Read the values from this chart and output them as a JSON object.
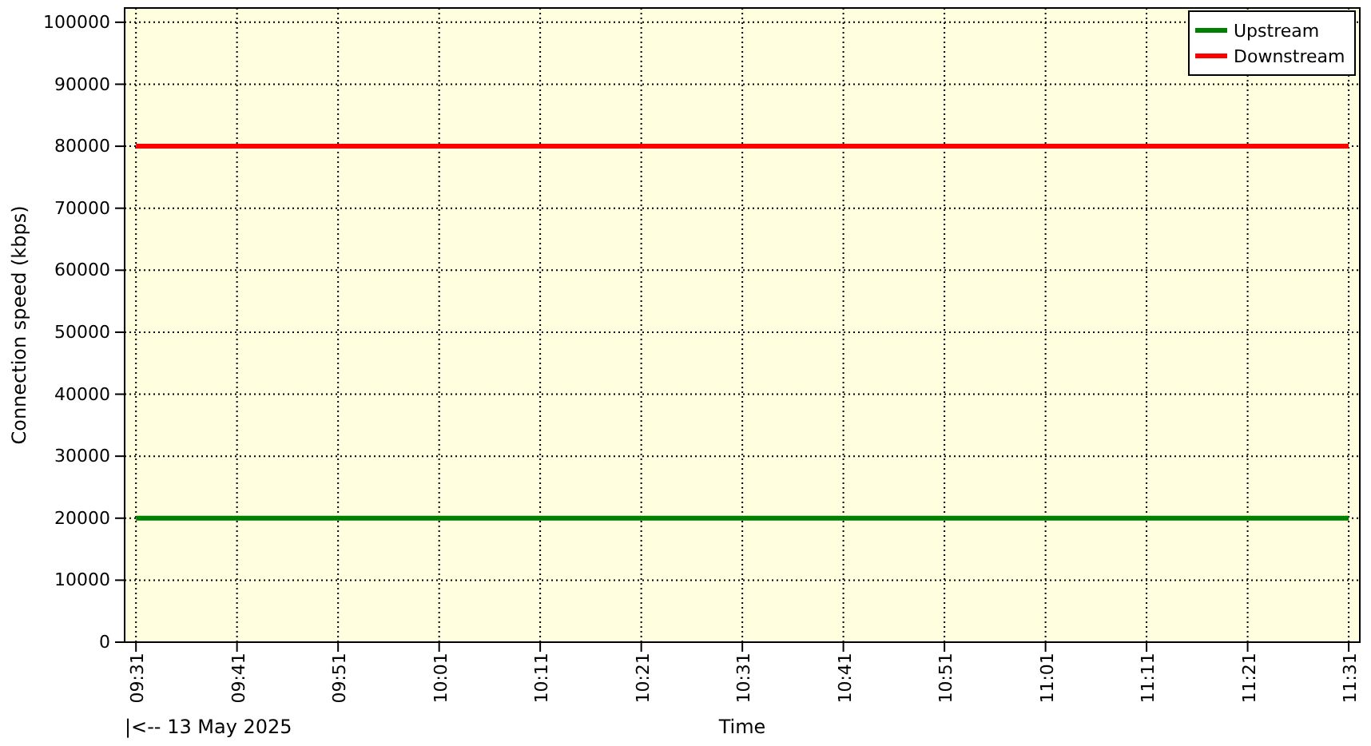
{
  "chart_data": {
    "type": "line",
    "xlabel": "Time",
    "ylabel": "Connection speed (kbps)",
    "annotations": [
      "|<-- 13 May 2025"
    ],
    "x": [
      9.5167,
      11.5167
    ],
    "series": [
      {
        "name": "Upstream",
        "color": "#008000",
        "values": [
          20000,
          20000
        ]
      },
      {
        "name": "Downstream",
        "color": "#ff0000",
        "values": [
          80000,
          80000
        ]
      }
    ],
    "xlim": [
      9.498,
      11.535
    ],
    "ylim": [
      0,
      102300
    ],
    "xticks": [
      {
        "value": 9.5167,
        "label": "09:31"
      },
      {
        "value": 9.6833,
        "label": "09:41"
      },
      {
        "value": 9.85,
        "label": "09:51"
      },
      {
        "value": 10.0167,
        "label": "10:01"
      },
      {
        "value": 10.1833,
        "label": "10:11"
      },
      {
        "value": 10.35,
        "label": "10:21"
      },
      {
        "value": 10.5167,
        "label": "10:31"
      },
      {
        "value": 10.6833,
        "label": "10:41"
      },
      {
        "value": 10.85,
        "label": "10:51"
      },
      {
        "value": 11.0167,
        "label": "11:01"
      },
      {
        "value": 11.1833,
        "label": "11:11"
      },
      {
        "value": 11.35,
        "label": "11:21"
      },
      {
        "value": 11.5167,
        "label": "11:31"
      }
    ],
    "yticks": [
      0,
      10000,
      20000,
      30000,
      40000,
      50000,
      60000,
      70000,
      80000,
      90000,
      100000
    ],
    "grid": true,
    "legend": "top right",
    "marker": "none",
    "line_style": "solid"
  }
}
